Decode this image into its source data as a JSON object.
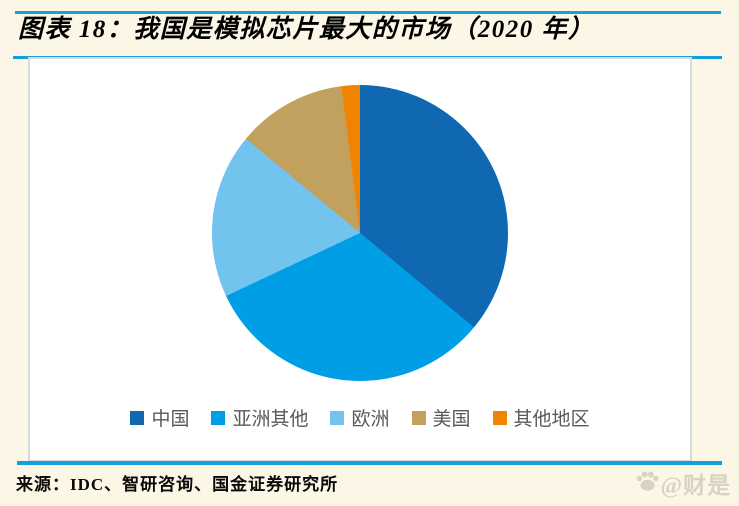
{
  "page": {
    "title": "图表 18：我国是模拟芯片最大的市场（2020 年）",
    "source": "来源：IDC、智研咨询、国金证券研究所",
    "watermark": "@财是"
  },
  "colors": {
    "background": "#FBF6E6",
    "rule_blue": "#14A0DC",
    "panel_border": "#D9D9D9",
    "legend_text": "#595959",
    "watermark_gray": "#D9D3C4"
  },
  "chart_data": {
    "type": "pie",
    "title": "图表 18：我国是模拟芯片最大的市场（2020 年）",
    "categories": [
      "中国",
      "亚洲其他",
      "欧洲",
      "美国",
      "其他地区"
    ],
    "values": [
      36,
      32,
      18,
      12,
      2
    ],
    "unit": "percent_share",
    "colors": [
      "#1168B2",
      "#009FE5",
      "#72C3EE",
      "#C1A15D",
      "#F08300"
    ],
    "start_angle_deg": 0,
    "direction": "clockwise",
    "legend_position": "bottom",
    "data_labels": false
  }
}
